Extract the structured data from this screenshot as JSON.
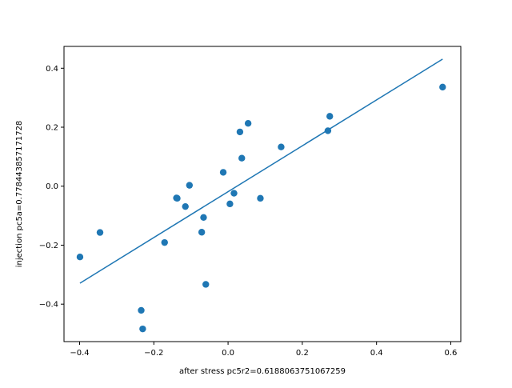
{
  "chart_data": {
    "type": "scatter",
    "title": "",
    "xlabel": "after stress pc5r2=0.6188063751067259",
    "ylabel": "injection pc5a=0.778443857171728",
    "xlim": [
      -0.442,
      0.627
    ],
    "ylim": [
      -0.527,
      0.474
    ],
    "grid": false,
    "marker_color": "#1f77b4",
    "line_color": "#1f77b4",
    "x_ticks": [
      {
        "value": -0.4,
        "label": "−0.4"
      },
      {
        "value": -0.2,
        "label": "−0.2"
      },
      {
        "value": 0.0,
        "label": "0.0"
      },
      {
        "value": 0.2,
        "label": "0.2"
      },
      {
        "value": 0.4,
        "label": "0.4"
      },
      {
        "value": 0.6,
        "label": "0.6"
      }
    ],
    "y_ticks": [
      {
        "value": -0.4,
        "label": "−0.4"
      },
      {
        "value": -0.2,
        "label": "−0.2"
      },
      {
        "value": 0.0,
        "label": "0.0"
      },
      {
        "value": 0.2,
        "label": "0.2"
      },
      {
        "value": 0.4,
        "label": "0.4"
      }
    ],
    "points": [
      {
        "x": -0.399,
        "y": -0.24
      },
      {
        "x": -0.345,
        "y": -0.157
      },
      {
        "x": -0.234,
        "y": -0.421
      },
      {
        "x": -0.23,
        "y": -0.484
      },
      {
        "x": -0.171,
        "y": -0.191
      },
      {
        "x": -0.139,
        "y": -0.04
      },
      {
        "x": -0.137,
        "y": -0.041
      },
      {
        "x": -0.115,
        "y": -0.069
      },
      {
        "x": -0.104,
        "y": 0.003
      },
      {
        "x": -0.071,
        "y": -0.156
      },
      {
        "x": -0.066,
        "y": -0.106
      },
      {
        "x": -0.06,
        "y": -0.333
      },
      {
        "x": -0.013,
        "y": 0.047
      },
      {
        "x": 0.005,
        "y": -0.06
      },
      {
        "x": 0.016,
        "y": -0.024
      },
      {
        "x": 0.032,
        "y": 0.184
      },
      {
        "x": 0.037,
        "y": 0.095
      },
      {
        "x": 0.054,
        "y": 0.213
      },
      {
        "x": 0.087,
        "y": -0.041
      },
      {
        "x": 0.143,
        "y": 0.133
      },
      {
        "x": 0.269,
        "y": 0.188
      },
      {
        "x": 0.274,
        "y": 0.237
      },
      {
        "x": 0.578,
        "y": 0.336
      }
    ],
    "fit_line": {
      "x": [
        -0.399,
        0.578
      ],
      "y": [
        -0.329,
        0.431
      ]
    }
  }
}
